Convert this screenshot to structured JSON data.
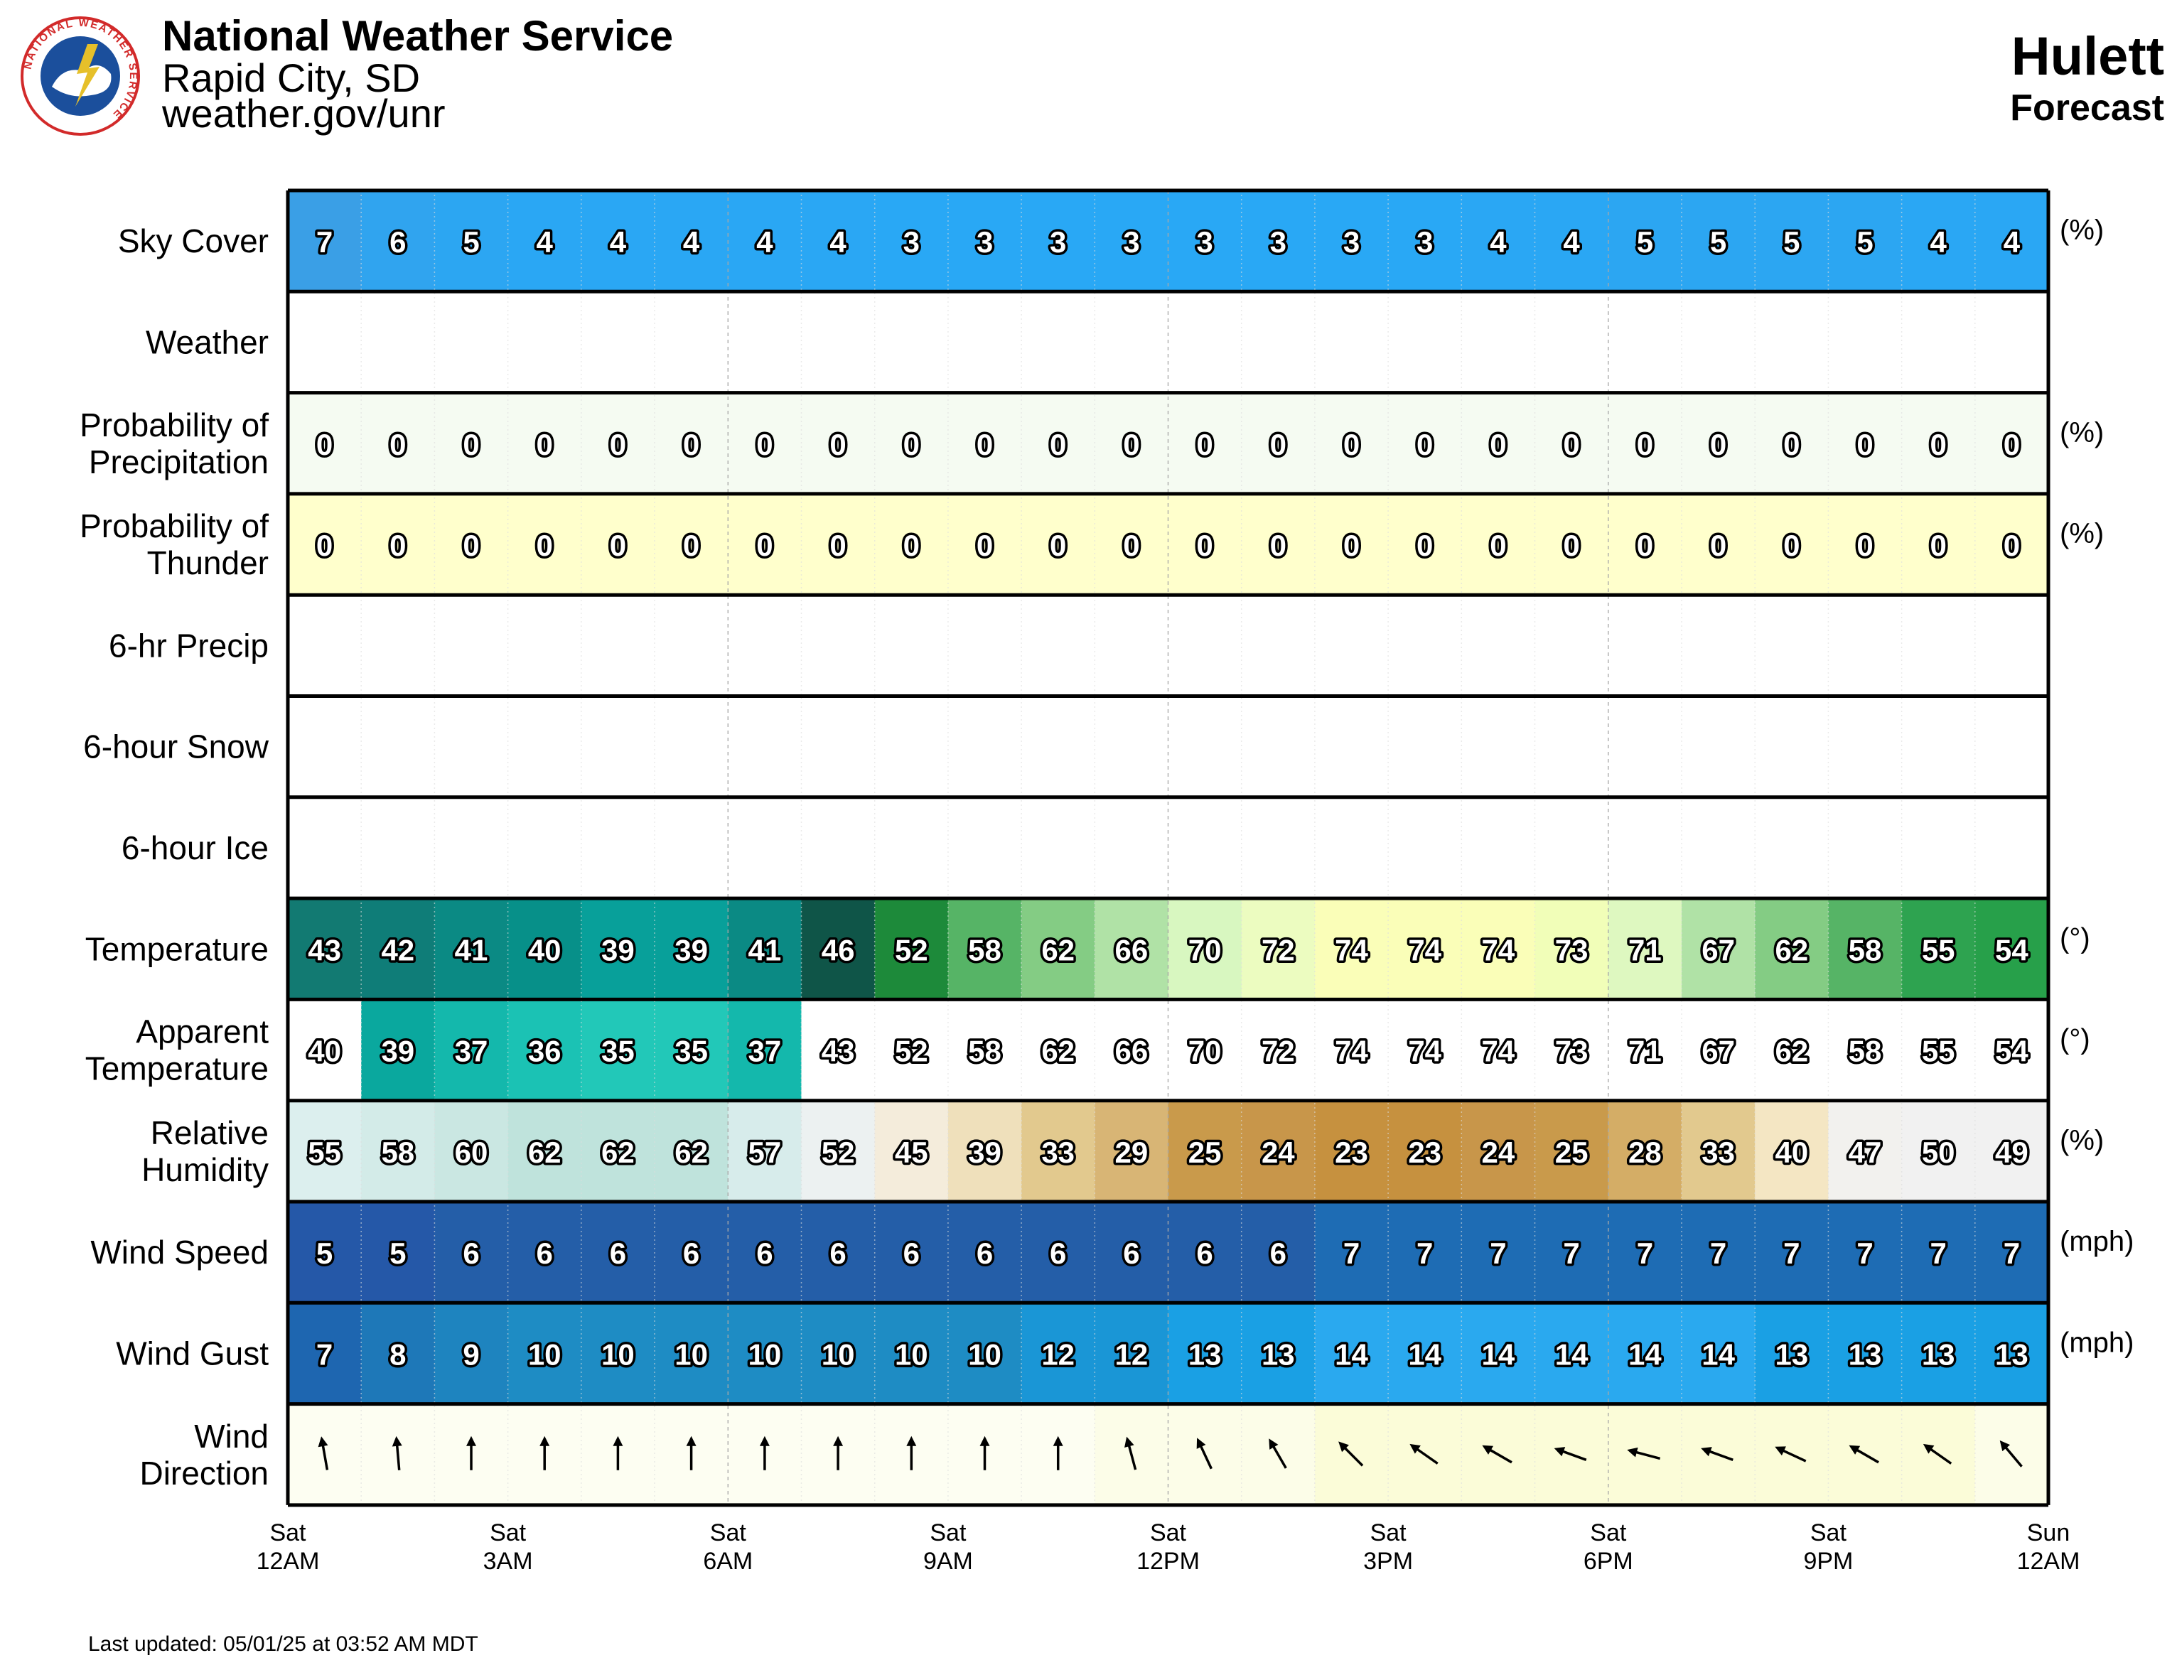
{
  "header": {
    "org_title": "National Weather Service",
    "org_office": "Rapid City, SD",
    "org_url": "weather.gov/unr",
    "location": "Hulett",
    "subtitle": "Forecast",
    "logo_text": "NATIONAL WEATHER SERVICE"
  },
  "footer": {
    "last_updated": "Last updated: 05/01/25 at 03:52 AM MDT"
  },
  "chart_data": {
    "type": "table",
    "hours": 24,
    "x_labels": [
      {
        "hour": 0,
        "day": "Sat",
        "time": "12AM"
      },
      {
        "hour": 3,
        "day": "Sat",
        "time": "3AM"
      },
      {
        "hour": 6,
        "day": "Sat",
        "time": "6AM"
      },
      {
        "hour": 9,
        "day": "Sat",
        "time": "9AM"
      },
      {
        "hour": 12,
        "day": "Sat",
        "time": "12PM"
      },
      {
        "hour": 15,
        "day": "Sat",
        "time": "3PM"
      },
      {
        "hour": 18,
        "day": "Sat",
        "time": "6PM"
      },
      {
        "hour": 21,
        "day": "Sat",
        "time": "9PM"
      },
      {
        "hour": 24,
        "day": "Sun",
        "time": "12AM"
      }
    ],
    "rows": [
      {
        "key": "sky",
        "label": [
          "Sky Cover"
        ],
        "unit": "(%)",
        "values": [
          7,
          6,
          5,
          4,
          4,
          4,
          4,
          4,
          3,
          3,
          3,
          3,
          3,
          3,
          3,
          3,
          4,
          4,
          5,
          5,
          5,
          5,
          4,
          4
        ],
        "colors": [
          "#3a9fe6",
          "#30a4ef",
          "#2ca6f2",
          "#2aa7f4",
          "#2aa7f4",
          "#2aa7f4",
          "#2aa7f4",
          "#2aa7f4",
          "#29a8f5",
          "#29a8f5",
          "#29a8f5",
          "#29a8f5",
          "#29a8f5",
          "#29a8f5",
          "#29a8f5",
          "#29a8f5",
          "#2aa7f4",
          "#2aa7f4",
          "#2ca6f2",
          "#2ca6f2",
          "#2ca6f2",
          "#2ca6f2",
          "#2aa7f4",
          "#2aa7f4"
        ]
      },
      {
        "key": "weather",
        "label": [
          "Weather"
        ],
        "unit": "",
        "values": [],
        "colors": []
      },
      {
        "key": "pop",
        "label": [
          "Probability of",
          "Precipitation"
        ],
        "unit": "(%)",
        "values": [
          0,
          0,
          0,
          0,
          0,
          0,
          0,
          0,
          0,
          0,
          0,
          0,
          0,
          0,
          0,
          0,
          0,
          0,
          0,
          0,
          0,
          0,
          0,
          0
        ],
        "colors": [
          "#f5fbf2",
          "#f5fbf2",
          "#f5fbf2",
          "#f5fbf2",
          "#f5fbf2",
          "#f5fbf2",
          "#f5fbf2",
          "#f5fbf2",
          "#f5fbf2",
          "#f5fbf2",
          "#f5fbf2",
          "#f5fbf2",
          "#f5fbf2",
          "#f5fbf2",
          "#f5fbf2",
          "#f5fbf2",
          "#f5fbf2",
          "#f5fbf2",
          "#f5fbf2",
          "#f5fbf2",
          "#f5fbf2",
          "#f5fbf2",
          "#f5fbf2",
          "#f5fbf2"
        ]
      },
      {
        "key": "thunder",
        "label": [
          "Probability of",
          "Thunder"
        ],
        "unit": "(%)",
        "values": [
          0,
          0,
          0,
          0,
          0,
          0,
          0,
          0,
          0,
          0,
          0,
          0,
          0,
          0,
          0,
          0,
          0,
          0,
          0,
          0,
          0,
          0,
          0,
          0
        ],
        "colors": [
          "#ffffcc",
          "#ffffcc",
          "#ffffcc",
          "#ffffcc",
          "#ffffcc",
          "#ffffcc",
          "#ffffcc",
          "#ffffcc",
          "#ffffcc",
          "#ffffcc",
          "#ffffcc",
          "#ffffcc",
          "#ffffcc",
          "#ffffcc",
          "#ffffcc",
          "#ffffcc",
          "#ffffcc",
          "#ffffcc",
          "#ffffcc",
          "#ffffcc",
          "#ffffcc",
          "#ffffcc",
          "#ffffcc",
          "#ffffcc"
        ]
      },
      {
        "key": "precip6",
        "label": [
          "6-hr Precip"
        ],
        "unit": "",
        "values": [],
        "colors": []
      },
      {
        "key": "snow6",
        "label": [
          "6-hour Snow"
        ],
        "unit": "",
        "values": [],
        "colors": []
      },
      {
        "key": "ice6",
        "label": [
          "6-hour Ice"
        ],
        "unit": "",
        "values": [],
        "colors": []
      },
      {
        "key": "temp",
        "label": [
          "Temperature"
        ],
        "unit": "(°)",
        "values": [
          43,
          42,
          41,
          40,
          39,
          39,
          41,
          46,
          52,
          58,
          62,
          66,
          70,
          72,
          74,
          74,
          74,
          73,
          71,
          67,
          62,
          58,
          55,
          54
        ],
        "colors": [
          "#127a72",
          "#0f7d78",
          "#0b8a84",
          "#079089",
          "#08a09a",
          "#08a09a",
          "#0b8a84",
          "#0f5548",
          "#1d8a3a",
          "#56b466",
          "#84cc84",
          "#b0e2a6",
          "#d8f7c0",
          "#ecfcc0",
          "#fafeb8",
          "#fafeb8",
          "#fafeb8",
          "#f1feb8",
          "#def8c0",
          "#b0e2a6",
          "#84cc84",
          "#56b466",
          "#2ea350",
          "#27a04a"
        ]
      },
      {
        "key": "apparent",
        "label": [
          "Apparent",
          "Temperature"
        ],
        "unit": "(°)",
        "values": [
          40,
          39,
          37,
          36,
          35,
          35,
          37,
          43,
          52,
          58,
          62,
          66,
          70,
          72,
          74,
          74,
          74,
          73,
          71,
          67,
          62,
          58,
          55,
          54
        ],
        "colors": [
          "#ffffff",
          "#0aa89e",
          "#14b8ac",
          "#1bc2b4",
          "#22c8b8",
          "#22c8b8",
          "#14b8ac",
          "#ffffff",
          "#ffffff",
          "#ffffff",
          "#ffffff",
          "#ffffff",
          "#ffffff",
          "#ffffff",
          "#ffffff",
          "#ffffff",
          "#ffffff",
          "#ffffff",
          "#ffffff",
          "#ffffff",
          "#ffffff",
          "#ffffff",
          "#ffffff",
          "#ffffff"
        ]
      },
      {
        "key": "rh",
        "label": [
          "Relative",
          "Humidity"
        ],
        "unit": "(%)",
        "values": [
          55,
          58,
          60,
          62,
          62,
          62,
          57,
          52,
          45,
          39,
          33,
          29,
          25,
          24,
          23,
          23,
          24,
          25,
          28,
          33,
          40,
          47,
          50,
          49
        ],
        "colors": [
          "#dcefee",
          "#d3ebe8",
          "#cae7e2",
          "#bfe3dc",
          "#bfe3dc",
          "#bfe3dc",
          "#d7eceb",
          "#ecf1f1",
          "#f4ecdb",
          "#efe0bb",
          "#e2c98e",
          "#d8b575",
          "#c99a4b",
          "#c8964a",
          "#c6913f",
          "#c6913f",
          "#c8964a",
          "#c99a4b",
          "#d4ad66",
          "#e2c98e",
          "#f4e6c3",
          "#f2f1ee",
          "#f1f1f1",
          "#f1f1f1"
        ]
      },
      {
        "key": "wind",
        "label": [
          "Wind Speed"
        ],
        "unit": "(mph)",
        "values": [
          5,
          5,
          6,
          6,
          6,
          6,
          6,
          6,
          6,
          6,
          6,
          6,
          6,
          6,
          7,
          7,
          7,
          7,
          7,
          7,
          7,
          7,
          7,
          7
        ],
        "colors": [
          "#2558a8",
          "#2558a8",
          "#245ea8",
          "#245ea8",
          "#245ea8",
          "#245ea8",
          "#245ea8",
          "#245ea8",
          "#245ea8",
          "#245ea8",
          "#245ea8",
          "#245ea8",
          "#245ea8",
          "#245ea8",
          "#1e6cb4",
          "#1e6cb4",
          "#1e6cb4",
          "#1e6cb4",
          "#1e6cb4",
          "#1e6cb4",
          "#1e6cb4",
          "#1e6cb4",
          "#1e6cb4",
          "#1e6cb4"
        ]
      },
      {
        "key": "gust",
        "label": [
          "Wind Gust"
        ],
        "unit": "(mph)",
        "values": [
          7,
          8,
          9,
          10,
          10,
          10,
          10,
          10,
          10,
          10,
          12,
          12,
          13,
          13,
          14,
          14,
          14,
          14,
          14,
          14,
          13,
          13,
          13,
          13
        ],
        "colors": [
          "#1e66b0",
          "#1e78b8",
          "#1e84bf",
          "#1e8cc4",
          "#1e8cc4",
          "#1e8cc4",
          "#1e8cc4",
          "#1e8cc4",
          "#1e8cc4",
          "#1e8cc4",
          "#1a96d6",
          "#1a96d6",
          "#1aa0e4",
          "#1aa0e4",
          "#2aa9ef",
          "#2aa9ef",
          "#2aa9ef",
          "#2aa9ef",
          "#2aa9ef",
          "#2aa9ef",
          "#1aa0e4",
          "#1aa0e4",
          "#1aa0e4",
          "#1aa0e4"
        ]
      },
      {
        "key": "winddir",
        "label": [
          "Wind",
          "Direction"
        ],
        "unit": "",
        "values": [
          170,
          175,
          180,
          180,
          180,
          180,
          180,
          180,
          180,
          180,
          180,
          165,
          155,
          150,
          135,
          125,
          120,
          110,
          105,
          110,
          115,
          120,
          125,
          140
        ],
        "colors": [
          "#fdfef2",
          "#fdfef2",
          "#fdfef2",
          "#fdfef2",
          "#fdfef2",
          "#fdfef2",
          "#fdfef2",
          "#fdfef2",
          "#fdfef2",
          "#fdfef2",
          "#fdfef2",
          "#fcfde8",
          "#fcfde8",
          "#fcfde8",
          "#fbfcd8",
          "#fbfcd8",
          "#fbfcd8",
          "#fbfcd8",
          "#fbfcd8",
          "#fbfcd8",
          "#fbfcd8",
          "#fbfcd8",
          "#fbfcd8",
          "#fcfde8"
        ]
      }
    ]
  }
}
